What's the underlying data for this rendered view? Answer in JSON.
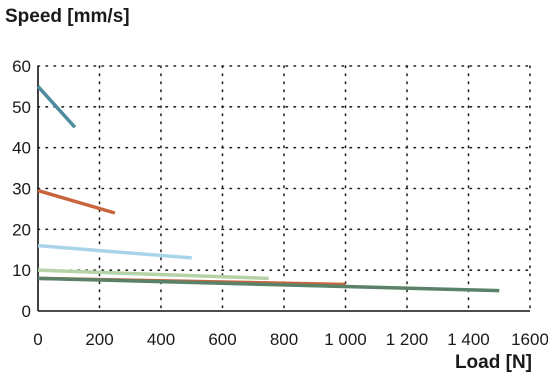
{
  "chart_data": {
    "type": "line",
    "title": "",
    "ylabel": "Speed [mm/s]",
    "xlabel": "Load [N]",
    "xlim": [
      0,
      1600
    ],
    "ylim": [
      0,
      60
    ],
    "x_ticks": [
      0,
      200,
      400,
      600,
      800,
      1000,
      1200,
      1400,
      1600
    ],
    "x_tick_labels": [
      "0",
      "200",
      "400",
      "600",
      "800",
      "1 000",
      "1 200",
      "1 400",
      "1600"
    ],
    "y_ticks": [
      0,
      10,
      20,
      30,
      40,
      50,
      60
    ],
    "y_tick_labels": [
      "0",
      "10",
      "20",
      "30",
      "40",
      "50",
      "60"
    ],
    "grid": true,
    "series": [
      {
        "color": "#4e8aa0",
        "x": [
          0,
          120
        ],
        "y": [
          55,
          45
        ]
      },
      {
        "color": "#c8643c",
        "x": [
          0,
          250
        ],
        "y": [
          29.5,
          24
        ]
      },
      {
        "color": "#a9d4ea",
        "x": [
          0,
          500
        ],
        "y": [
          16,
          13
        ]
      },
      {
        "color": "#b5d3a6",
        "x": [
          0,
          750
        ],
        "y": [
          10,
          8
        ]
      },
      {
        "color": "#c8643c",
        "x": [
          0,
          1000
        ],
        "y": [
          8,
          6.5
        ]
      },
      {
        "color": "#5a8268",
        "x": [
          0,
          1500
        ],
        "y": [
          8,
          5
        ]
      }
    ]
  }
}
